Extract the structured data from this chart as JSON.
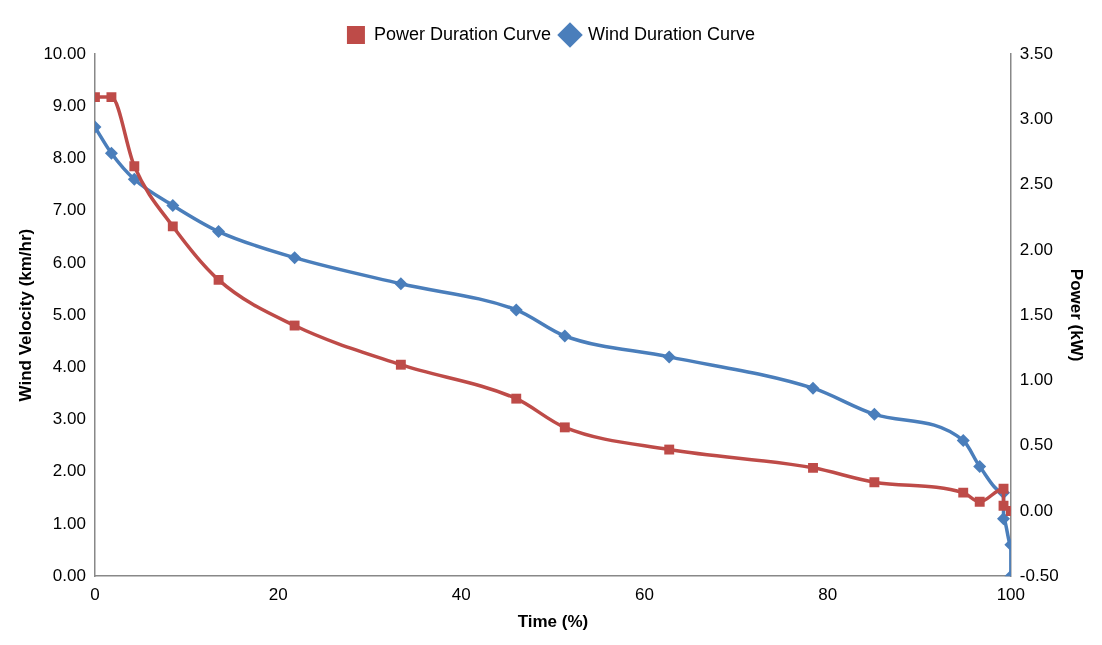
{
  "chart_data": {
    "type": "line",
    "xlabel": "Time (%)",
    "ylabel": "Wind Velocity (km/hr)",
    "y2label": "Power (kW)",
    "xlim": [
      0,
      100
    ],
    "xticks": [
      0,
      20,
      40,
      60,
      80,
      100
    ],
    "ylim": [
      0,
      10
    ],
    "yticks": [
      {
        "value": 0,
        "label": "0.00"
      },
      {
        "value": 1,
        "label": "1.00"
      },
      {
        "value": 2,
        "label": "2.00"
      },
      {
        "value": 3,
        "label": "3.00"
      },
      {
        "value": 4,
        "label": "4.00"
      },
      {
        "value": 5,
        "label": "5.00"
      },
      {
        "value": 6,
        "label": "6.00"
      },
      {
        "value": 7,
        "label": "7.00"
      },
      {
        "value": 8,
        "label": "8.00"
      },
      {
        "value": 9,
        "label": "9.00"
      },
      {
        "value": 10,
        "label": "10.00"
      }
    ],
    "y2lim": [
      -0.5,
      3.5
    ],
    "y2ticks": [
      {
        "value": -0.5,
        "label": "-0.50"
      },
      {
        "value": 0,
        "label": "0.00"
      },
      {
        "value": 0.5,
        "label": "0.50"
      },
      {
        "value": 1,
        "label": "1.00"
      },
      {
        "value": 1.5,
        "label": "1.50"
      },
      {
        "value": 2,
        "label": "2.00"
      },
      {
        "value": 2.5,
        "label": "2.50"
      },
      {
        "value": 3,
        "label": "3.00"
      },
      {
        "value": 3.5,
        "label": "3.50"
      }
    ],
    "grid": false,
    "legend": "top",
    "line_style": "solid",
    "series": [
      {
        "name": "Wind Duration Curve",
        "color": "#4a7ebb",
        "marker": "diamond",
        "x": [
          0,
          1.8,
          4.3,
          8.5,
          13.5,
          21.8,
          33.4,
          46,
          51.3,
          62.7,
          78.4,
          85.1,
          94.8,
          96.6,
          99.2,
          99.2,
          100,
          100
        ],
        "values": [
          8.6,
          8.1,
          7.6,
          7.1,
          6.6,
          6.1,
          5.6,
          5.1,
          4.6,
          4.2,
          3.6,
          3.1,
          2.6,
          2.1,
          1.6,
          1.1,
          0.6,
          0
        ]
      },
      {
        "name": "Power Duration Curve",
        "color": "#be4b48",
        "marker": "square",
        "axis": "y2",
        "x": [
          0,
          1.8,
          4.3,
          8.5,
          13.5,
          21.8,
          33.4,
          46,
          51.3,
          62.7,
          78.4,
          85.1,
          94.8,
          96.6,
          99.2,
          99.2,
          100
        ],
        "values": [
          3.17,
          3.17,
          2.64,
          2.18,
          1.77,
          1.42,
          1.12,
          0.86,
          0.64,
          0.47,
          0.33,
          0.22,
          0.14,
          0.07,
          0.17,
          0.04,
          0.0
        ]
      }
    ]
  }
}
